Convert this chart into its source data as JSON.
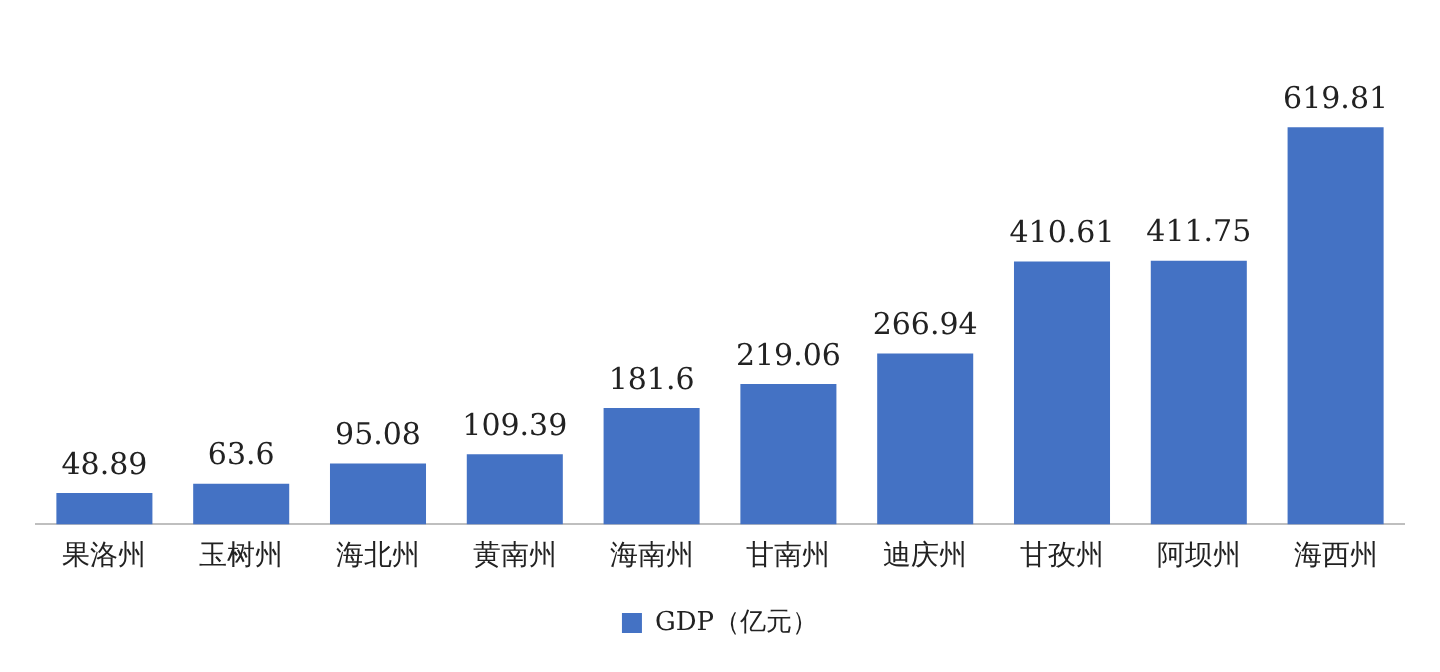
{
  "chart_data": {
    "type": "bar",
    "categories": [
      "果洛州",
      "玉树州",
      "海北州",
      "黄南州",
      "海南州",
      "甘南州",
      "迪庆州",
      "甘孜州",
      "阿坝州",
      "海西州"
    ],
    "series": [
      {
        "name": "GDP（亿元）",
        "color": "#4472c4",
        "values": [
          48.89,
          63.6,
          95.08,
          109.39,
          181.6,
          219.06,
          266.94,
          410.61,
          411.75,
          619.81
        ]
      }
    ],
    "data_labels": true,
    "legend": "bottom",
    "grid": false
  }
}
